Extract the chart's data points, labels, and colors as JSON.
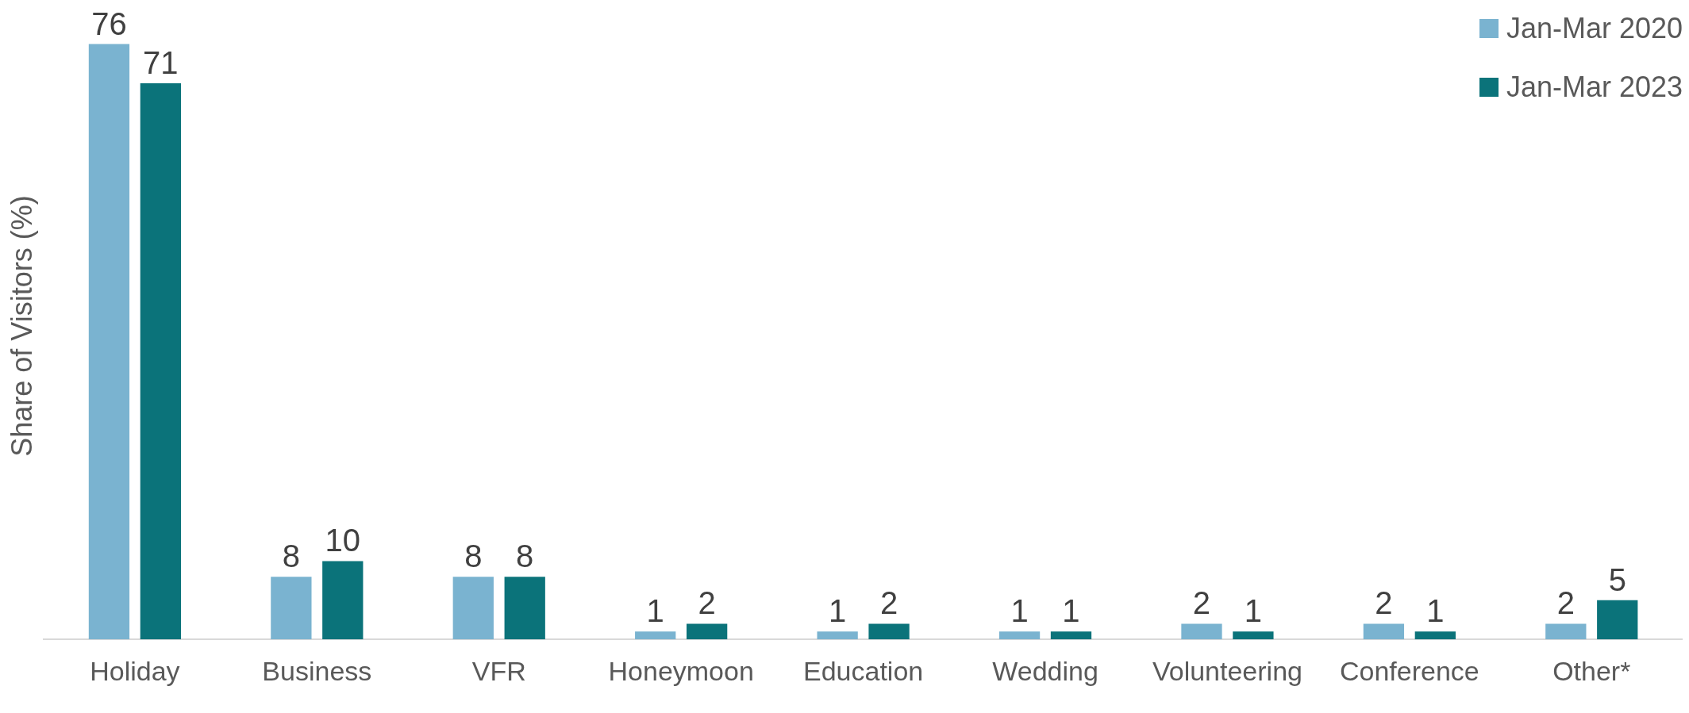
{
  "chart_data": {
    "type": "bar",
    "ylabel": "Share of Visitors (%)",
    "categories": [
      "Holiday",
      "Business",
      "VFR",
      "Honeymoon",
      "Education",
      "Wedding",
      "Volunteering",
      "Conference",
      "Other*"
    ],
    "series": [
      {
        "name": "Jan-Mar 2020",
        "color": "#7ab3d0",
        "values": [
          76,
          8,
          8,
          1,
          1,
          1,
          2,
          2,
          2
        ]
      },
      {
        "name": "Jan-Mar 2023",
        "color": "#0b737a",
        "values": [
          71,
          10,
          8,
          2,
          2,
          1,
          1,
          1,
          5
        ]
      }
    ],
    "data_labels": true,
    "legend": "top right",
    "tick_labels": "x"
  }
}
